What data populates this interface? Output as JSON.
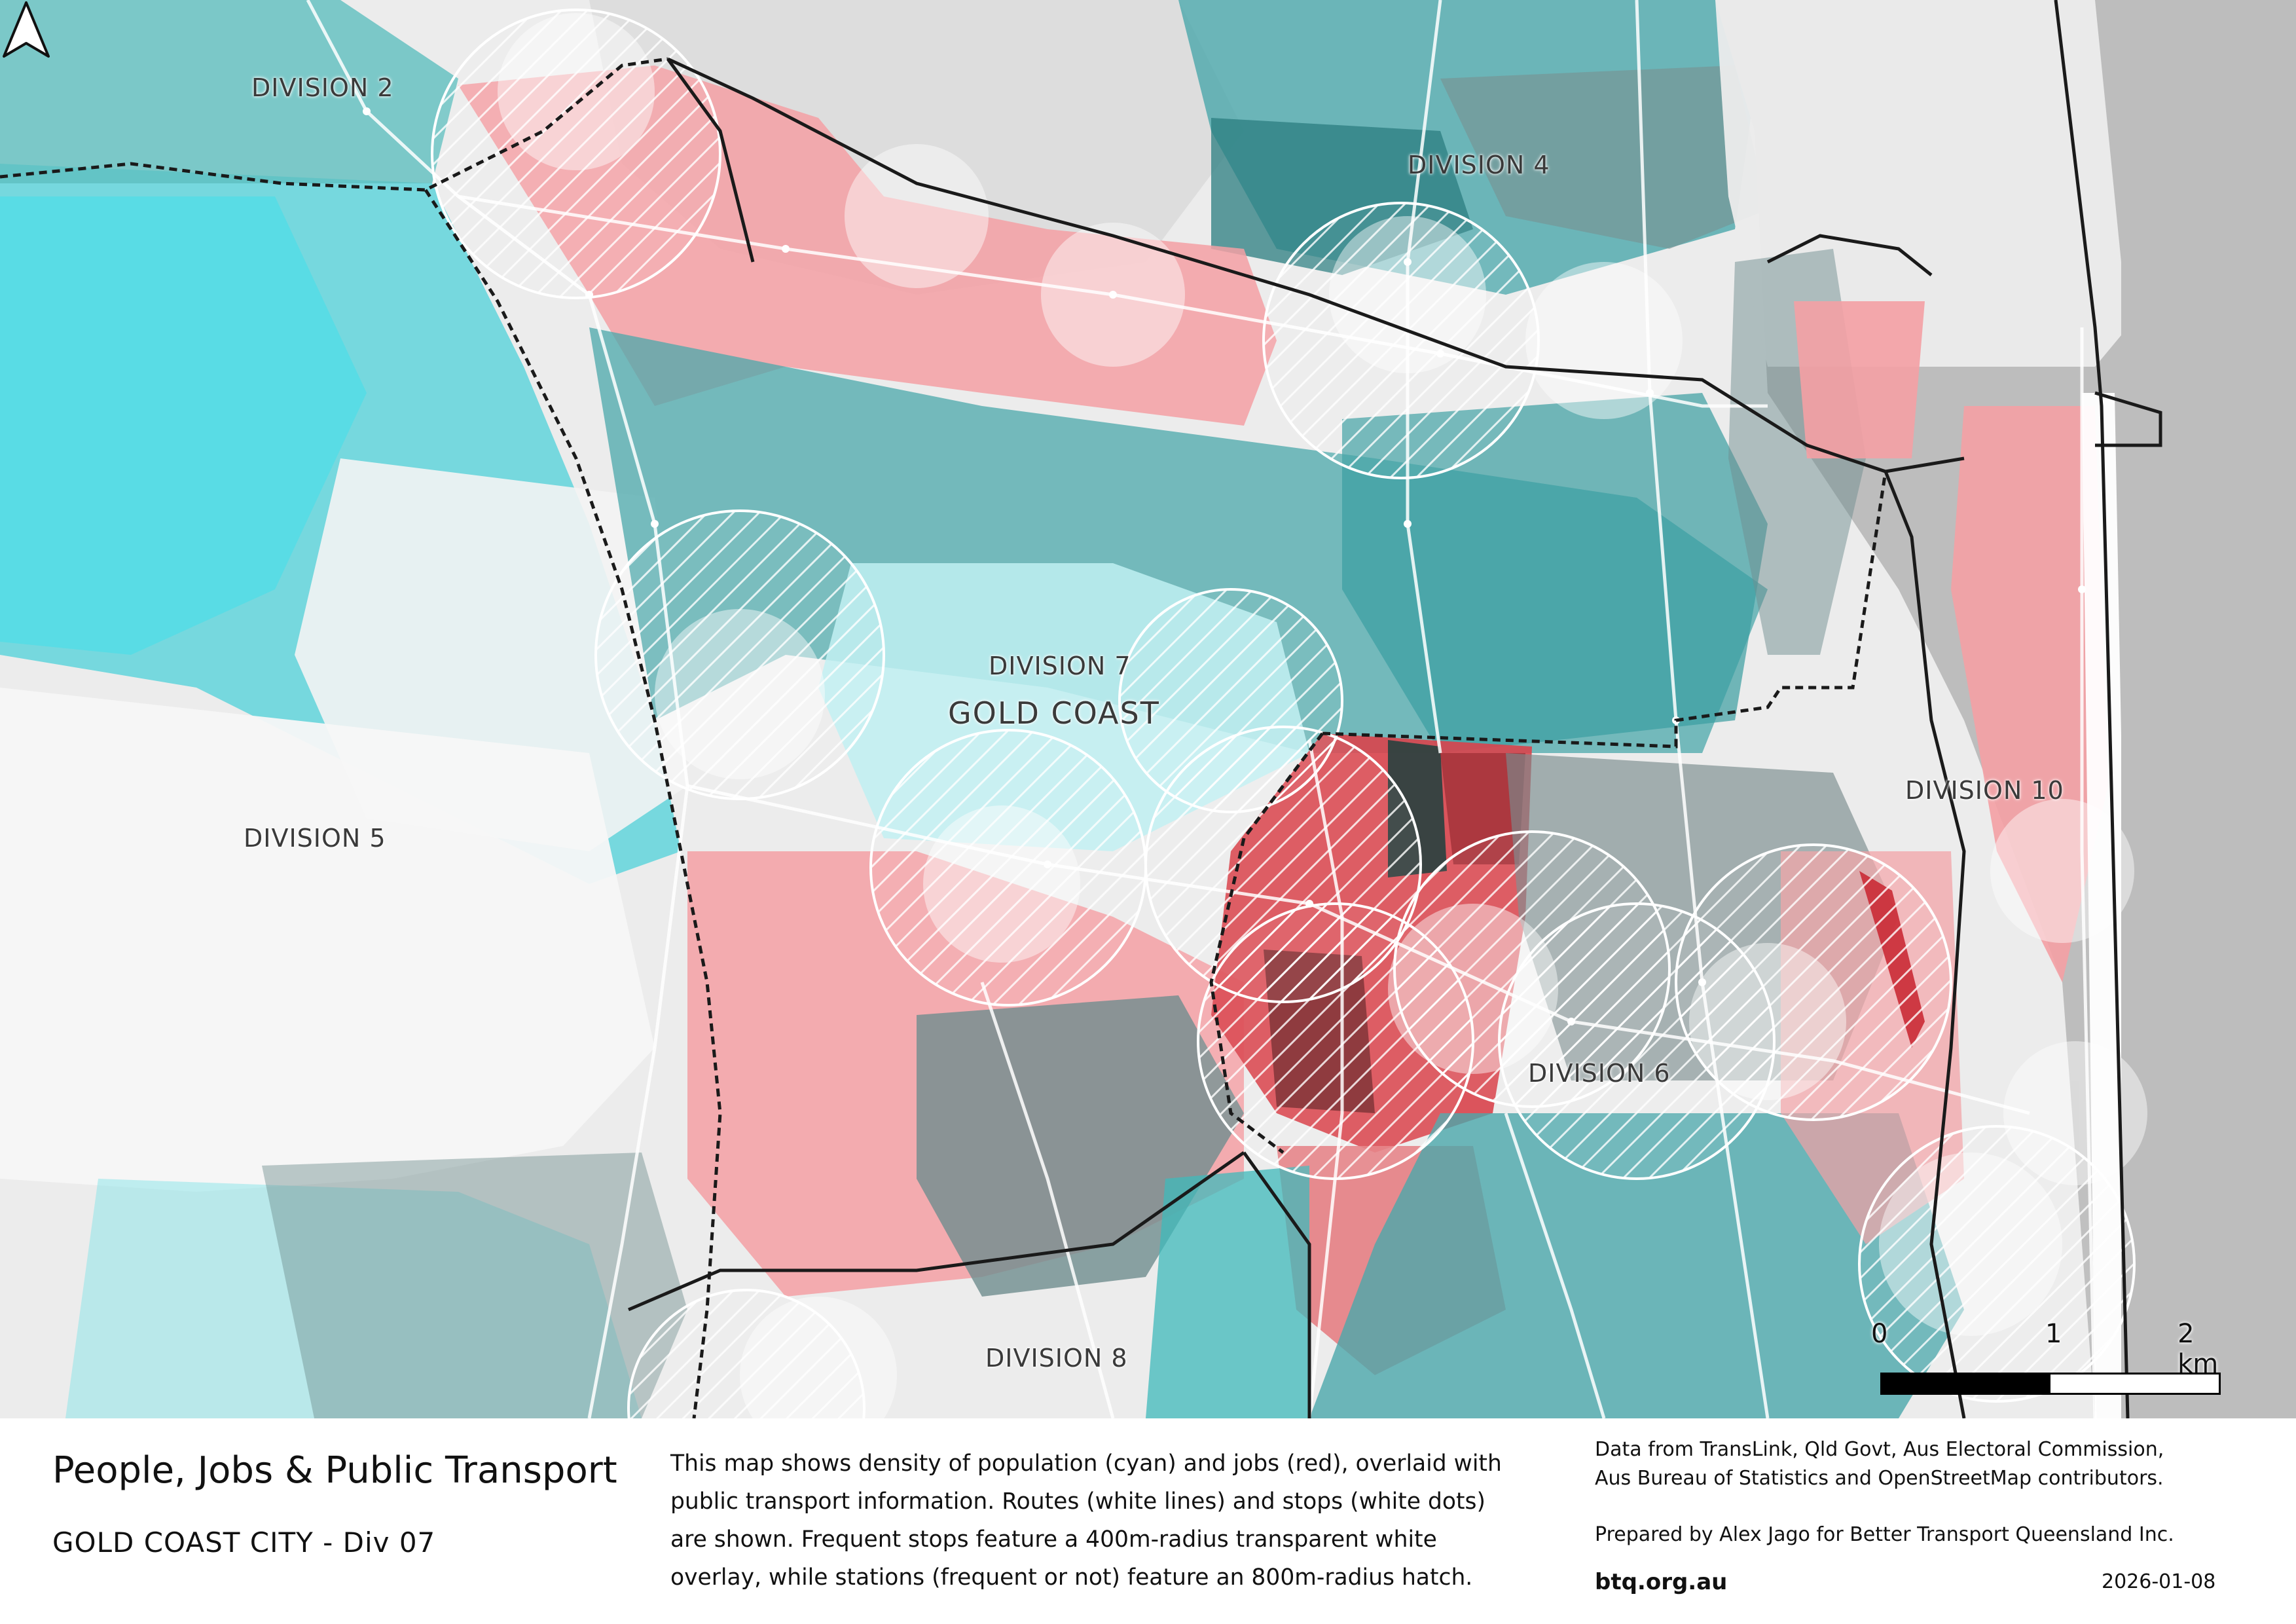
{
  "map": {
    "labels": [
      {
        "id": "division-2",
        "text": "DIVISION 2"
      },
      {
        "id": "division-4",
        "text": "DIVISION 4"
      },
      {
        "id": "division-7",
        "text": "DIVISION 7"
      },
      {
        "id": "gold-coast",
        "text": "GOLD COAST"
      },
      {
        "id": "division-5",
        "text": "DIVISION 5"
      },
      {
        "id": "division-10",
        "text": "DIVISION 10"
      },
      {
        "id": "division-6",
        "text": "DIVISION 6"
      },
      {
        "id": "division-8",
        "text": "DIVISION 8"
      }
    ],
    "colors": {
      "population": "#3fb9bb",
      "population_light": "#8fe6ea",
      "population_bright": "#38e3ee",
      "jobs": "#f4a0a4",
      "jobs_dark": "#d9444c",
      "jobs_darkest": "#7a2a2e",
      "mixed": "#6f8d8f",
      "water": "#bdbdbd",
      "land": "#ececec"
    },
    "north_arrow_icon": "north-arrow-icon"
  },
  "scale_bar": {
    "ticks": [
      "0",
      "1",
      "2 km"
    ],
    "segments": [
      "#000000",
      "#ffffff"
    ]
  },
  "footer": {
    "title": "People, Jobs & Public Transport",
    "subtitle": "GOLD COAST CITY - Div 07",
    "description_lines": [
      "This map shows density of population (cyan) and jobs (red), overlaid with",
      "public transport information. Routes (white lines) and stops (white dots)",
      "are shown. Frequent stops feature a 400m-radius transparent white",
      "overlay, while stations (frequent or not) feature an 800m-radius hatch."
    ],
    "data_lines": [
      "Data from TransLink,  Qld Govt,  Aus Electoral Commission,",
      "Aus Bureau of Statistics and OpenStreetMap contributors."
    ],
    "prepared_by": "Prepared by Alex Jago for Better Transport Queensland Inc.",
    "website": "btq.org.au",
    "date": "2026-01-08"
  }
}
